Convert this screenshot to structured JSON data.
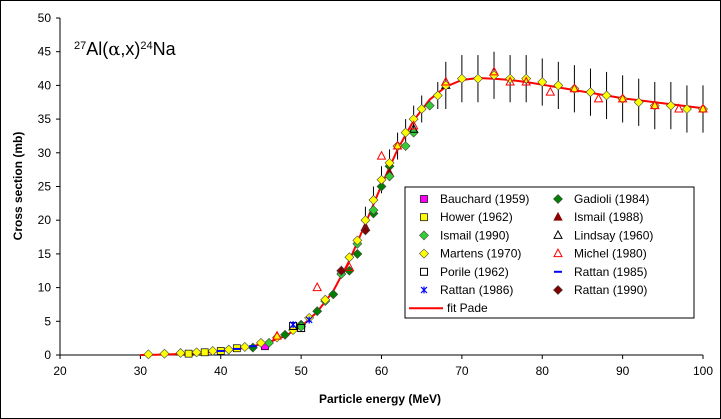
{
  "chart_data": {
    "type": "scatter",
    "title_parts": {
      "mass": "27",
      "target": "Al(",
      "projectile": "α",
      "rest": ",x)",
      "product_mass": "24",
      "product": "Na"
    },
    "xlabel": "Particle energy (MeV)",
    "ylabel": "Cross section (mb)",
    "xlim": [
      20,
      100
    ],
    "ylim": [
      0,
      50
    ],
    "xticks": [
      "20",
      "30",
      "40",
      "50",
      "60",
      "70",
      "80",
      "90",
      "100"
    ],
    "yticks": [
      "0",
      "5",
      "10",
      "15",
      "20",
      "25",
      "30",
      "35",
      "40",
      "45",
      "50"
    ],
    "grid": false,
    "legend_position": "lower-right",
    "series": [
      {
        "name": "Bauchard (1959)",
        "marker": "square",
        "color": "#ff00ff",
        "points": [
          [
            45.5,
            1.3
          ]
        ]
      },
      {
        "name": "Gadioli (1984)",
        "marker": "diamond",
        "color": "#008000",
        "points": [
          [
            44,
            1.1
          ],
          [
            48,
            3.0
          ],
          [
            50,
            4.5
          ],
          [
            52,
            6.5
          ],
          [
            54,
            9.0
          ],
          [
            56,
            12.5
          ],
          [
            57,
            15
          ],
          [
            58,
            18.5
          ],
          [
            59,
            21
          ],
          [
            60,
            25
          ],
          [
            61,
            28
          ],
          [
            62,
            31
          ]
        ]
      },
      {
        "name": "Hower (1962)",
        "marker": "square",
        "color": "#ffff00",
        "points": [
          [
            36,
            0.2
          ],
          [
            38,
            0.4
          ],
          [
            40,
            0.6
          ],
          [
            42,
            1.0
          ]
        ]
      },
      {
        "name": "Ismail (1988)",
        "marker": "triangle",
        "color": "#8b0000",
        "points": [
          [
            55,
            12.5
          ],
          [
            58,
            19
          ],
          [
            61,
            27
          ]
        ]
      },
      {
        "name": "Ismail (1990)",
        "marker": "diamond",
        "color": "#33cc33",
        "points": [
          [
            46,
            1.8
          ],
          [
            50,
            4.2
          ],
          [
            53,
            8.0
          ],
          [
            55,
            12
          ],
          [
            57,
            16.5
          ],
          [
            59,
            21.5
          ],
          [
            61,
            26.5
          ],
          [
            63,
            31
          ],
          [
            64,
            33
          ],
          [
            66,
            37
          ]
        ]
      },
      {
        "name": "Lindsay (1960)",
        "marker": "triangle-open",
        "color": "#000000",
        "points": [
          [
            64,
            33.5
          ],
          [
            68,
            40
          ]
        ]
      },
      {
        "name": "Martens (1970)",
        "marker": "diamond",
        "color": "#ffff00",
        "points": [
          [
            31,
            0.1
          ],
          [
            33,
            0.2
          ],
          [
            35,
            0.3
          ],
          [
            37,
            0.4
          ],
          [
            39,
            0.6
          ],
          [
            41,
            0.8
          ],
          [
            43,
            1.2
          ],
          [
            45,
            1.8
          ],
          [
            47,
            2.6
          ],
          [
            49,
            3.7
          ],
          [
            51,
            5.5
          ],
          [
            53,
            8.2
          ],
          [
            55,
            12.5
          ],
          [
            56,
            14.5
          ],
          [
            57,
            17
          ],
          [
            58,
            20
          ],
          [
            59,
            23
          ],
          [
            60,
            26
          ],
          [
            61,
            28.5
          ],
          [
            62,
            31
          ],
          [
            63,
            33
          ],
          [
            64,
            35
          ],
          [
            65,
            36.5
          ],
          [
            67,
            38.5
          ],
          [
            68,
            40
          ],
          [
            70,
            41
          ],
          [
            72,
            41
          ],
          [
            74,
            41.5
          ],
          [
            76,
            41
          ],
          [
            78,
            41
          ],
          [
            80,
            40.5
          ],
          [
            82,
            40
          ],
          [
            84,
            39.5
          ],
          [
            86,
            39
          ],
          [
            88,
            38.5
          ],
          [
            90,
            38
          ],
          [
            92,
            37.5
          ],
          [
            94,
            37
          ],
          [
            96,
            37
          ],
          [
            98,
            36.5
          ],
          [
            100,
            36.5
          ]
        ]
      },
      {
        "name": "Michel (1980)",
        "marker": "triangle-open",
        "color": "#ff0000",
        "points": [
          [
            47,
            2.8
          ],
          [
            52,
            10
          ],
          [
            56,
            13
          ],
          [
            60,
            29.5
          ],
          [
            62,
            31
          ],
          [
            64,
            34
          ],
          [
            68,
            40.5
          ],
          [
            74,
            42
          ],
          [
            76,
            40.5
          ],
          [
            78,
            40.5
          ],
          [
            81,
            39
          ],
          [
            84,
            39.5
          ],
          [
            87,
            38
          ],
          [
            90,
            38
          ],
          [
            94,
            37
          ],
          [
            97,
            36.5
          ],
          [
            100,
            36.5
          ]
        ]
      },
      {
        "name": "Porile (1962)",
        "marker": "square-open",
        "color": "#000000",
        "points": [
          [
            49,
            4.3
          ],
          [
            50,
            4.0
          ]
        ]
      },
      {
        "name": "Rattan (1985)",
        "marker": "dash",
        "color": "#0000ff",
        "points": [
          [
            40,
            0.6
          ],
          [
            42,
            0.9
          ],
          [
            44,
            1.3
          ]
        ]
      },
      {
        "name": "Rattan (1986)",
        "marker": "star",
        "color": "#0000ff",
        "points": [
          [
            49,
            4.5
          ],
          [
            51,
            5.2
          ]
        ]
      },
      {
        "name": "Rattan (1990)",
        "marker": "diamond",
        "color": "#800000",
        "points": [
          [
            55,
            12.5
          ],
          [
            58,
            18.5
          ]
        ]
      }
    ],
    "fit": {
      "name": "fit Pade",
      "color": "#ff0000",
      "x": [
        30,
        32,
        34,
        36,
        38,
        40,
        42,
        44,
        46,
        48,
        50,
        52,
        54,
        56,
        58,
        60,
        62,
        64,
        66,
        68,
        70,
        72,
        74,
        76,
        78,
        80,
        82,
        84,
        86,
        88,
        90,
        92,
        94,
        96,
        98,
        100
      ],
      "y": [
        0,
        0.05,
        0.1,
        0.2,
        0.35,
        0.55,
        0.85,
        1.3,
        1.9,
        2.8,
        4.2,
        6.4,
        9.5,
        14,
        19.5,
        25.2,
        30.5,
        34.8,
        37.9,
        39.8,
        40.8,
        41.1,
        41.0,
        40.8,
        40.5,
        40.1,
        39.7,
        39.3,
        38.9,
        38.5,
        38.1,
        37.8,
        37.5,
        37.2,
        36.9,
        36.6
      ]
    }
  }
}
